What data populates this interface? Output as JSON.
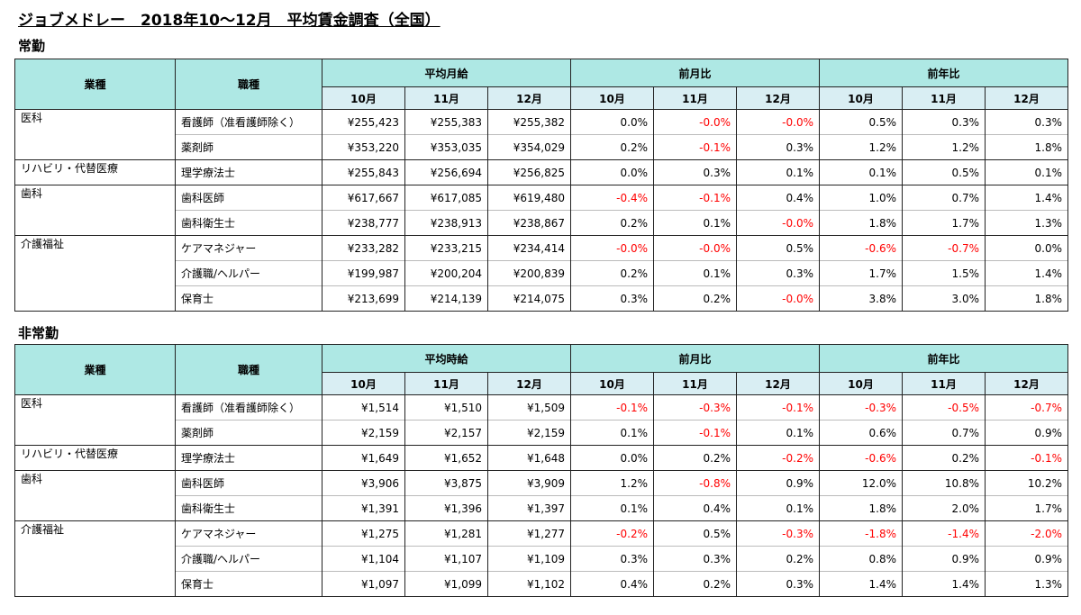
{
  "title": "ジョブメドレー　2018年10〜12月　平均賃金調査（全国）",
  "months": [
    "10月",
    "11月",
    "12月"
  ],
  "headers": {
    "industry": "業種",
    "job": "職種",
    "mom": "前月比",
    "yoy": "前年比"
  },
  "sections": [
    {
      "label": "常勤",
      "wage_header": "平均月給",
      "groups": [
        {
          "industry": "医科",
          "rows": [
            {
              "job": "看護師（准看護師除く）",
              "wage": [
                "¥255,423",
                "¥255,383",
                "¥255,382"
              ],
              "mom": [
                "0.0%",
                "-0.0%",
                "-0.0%"
              ],
              "yoy": [
                "0.5%",
                "0.3%",
                "0.3%"
              ]
            },
            {
              "job": "薬剤師",
              "wage": [
                "¥353,220",
                "¥353,035",
                "¥354,029"
              ],
              "mom": [
                "0.2%",
                "-0.1%",
                "0.3%"
              ],
              "yoy": [
                "1.2%",
                "1.2%",
                "1.8%"
              ]
            }
          ]
        },
        {
          "industry": "リハビリ・代替医療",
          "rows": [
            {
              "job": "理学療法士",
              "wage": [
                "¥255,843",
                "¥256,694",
                "¥256,825"
              ],
              "mom": [
                "0.0%",
                "0.3%",
                "0.1%"
              ],
              "yoy": [
                "0.1%",
                "0.5%",
                "0.1%"
              ]
            }
          ]
        },
        {
          "industry": "歯科",
          "rows": [
            {
              "job": "歯科医師",
              "wage": [
                "¥617,667",
                "¥617,085",
                "¥619,480"
              ],
              "mom": [
                "-0.4%",
                "-0.1%",
                "0.4%"
              ],
              "yoy": [
                "1.0%",
                "0.7%",
                "1.4%"
              ]
            },
            {
              "job": "歯科衛生士",
              "wage": [
                "¥238,777",
                "¥238,913",
                "¥238,867"
              ],
              "mom": [
                "0.2%",
                "0.1%",
                "-0.0%"
              ],
              "yoy": [
                "1.8%",
                "1.7%",
                "1.3%"
              ]
            }
          ]
        },
        {
          "industry": "介護福祉",
          "rows": [
            {
              "job": "ケアマネジャー",
              "wage": [
                "¥233,282",
                "¥233,215",
                "¥234,414"
              ],
              "mom": [
                "-0.0%",
                "-0.0%",
                "0.5%"
              ],
              "yoy": [
                "-0.6%",
                "-0.7%",
                "0.0%"
              ]
            },
            {
              "job": "介護職/ヘルパー",
              "wage": [
                "¥199,987",
                "¥200,204",
                "¥200,839"
              ],
              "mom": [
                "0.2%",
                "0.1%",
                "0.3%"
              ],
              "yoy": [
                "1.7%",
                "1.5%",
                "1.4%"
              ]
            },
            {
              "job": "保育士",
              "wage": [
                "¥213,699",
                "¥214,139",
                "¥214,075"
              ],
              "mom": [
                "0.3%",
                "0.2%",
                "-0.0%"
              ],
              "yoy": [
                "3.8%",
                "3.0%",
                "1.8%"
              ]
            }
          ]
        }
      ]
    },
    {
      "label": "非常勤",
      "wage_header": "平均時給",
      "groups": [
        {
          "industry": "医科",
          "rows": [
            {
              "job": "看護師（准看護師除く）",
              "wage": [
                "¥1,514",
                "¥1,510",
                "¥1,509"
              ],
              "mom": [
                "-0.1%",
                "-0.3%",
                "-0.1%"
              ],
              "yoy": [
                "-0.3%",
                "-0.5%",
                "-0.7%"
              ]
            },
            {
              "job": "薬剤師",
              "wage": [
                "¥2,159",
                "¥2,157",
                "¥2,159"
              ],
              "mom": [
                "0.1%",
                "-0.1%",
                "0.1%"
              ],
              "yoy": [
                "0.6%",
                "0.7%",
                "0.9%"
              ]
            }
          ]
        },
        {
          "industry": "リハビリ・代替医療",
          "rows": [
            {
              "job": "理学療法士",
              "wage": [
                "¥1,649",
                "¥1,652",
                "¥1,648"
              ],
              "mom": [
                "0.0%",
                "0.2%",
                "-0.2%"
              ],
              "yoy": [
                "-0.6%",
                "0.2%",
                "-0.1%"
              ]
            }
          ]
        },
        {
          "industry": "歯科",
          "rows": [
            {
              "job": "歯科医師",
              "wage": [
                "¥3,906",
                "¥3,875",
                "¥3,909"
              ],
              "mom": [
                "1.2%",
                "-0.8%",
                "0.9%"
              ],
              "yoy": [
                "12.0%",
                "10.8%",
                "10.2%"
              ]
            },
            {
              "job": "歯科衛生士",
              "wage": [
                "¥1,391",
                "¥1,396",
                "¥1,397"
              ],
              "mom": [
                "0.1%",
                "0.4%",
                "0.1%"
              ],
              "yoy": [
                "1.8%",
                "2.0%",
                "1.7%"
              ]
            }
          ]
        },
        {
          "industry": "介護福祉",
          "rows": [
            {
              "job": "ケアマネジャー",
              "wage": [
                "¥1,275",
                "¥1,281",
                "¥1,277"
              ],
              "mom": [
                "-0.2%",
                "0.5%",
                "-0.3%"
              ],
              "yoy": [
                "-1.8%",
                "-1.4%",
                "-2.0%"
              ]
            },
            {
              "job": "介護職/ヘルパー",
              "wage": [
                "¥1,104",
                "¥1,107",
                "¥1,109"
              ],
              "mom": [
                "0.3%",
                "0.3%",
                "0.2%"
              ],
              "yoy": [
                "0.8%",
                "0.9%",
                "0.9%"
              ]
            },
            {
              "job": "保育士",
              "wage": [
                "¥1,097",
                "¥1,099",
                "¥1,102"
              ],
              "mom": [
                "0.4%",
                "0.2%",
                "0.3%"
              ],
              "yoy": [
                "1.4%",
                "1.4%",
                "1.3%"
              ]
            }
          ]
        }
      ]
    }
  ],
  "colors": {
    "header_fill": "#aee8e4",
    "month_fill": "#d9eef3",
    "negative": "#ff0000",
    "positive": "#000000"
  },
  "chart_data": [
    {
      "type": "table",
      "title": "常勤",
      "columns": [
        "業種",
        "職種",
        "平均月給 10月",
        "平均月給 11月",
        "平均月給 12月",
        "前月比 10月",
        "前月比 11月",
        "前月比 12月",
        "前年比 10月",
        "前年比 11月",
        "前年比 12月"
      ],
      "note": "values listed in sections[0]"
    },
    {
      "type": "table",
      "title": "非常勤",
      "columns": [
        "業種",
        "職種",
        "平均時給 10月",
        "平均時給 11月",
        "平均時給 12月",
        "前月比 10月",
        "前月比 11月",
        "前月比 12月",
        "前年比 10月",
        "前年比 11月",
        "前年比 12月"
      ],
      "note": "values listed in sections[1]"
    }
  ]
}
